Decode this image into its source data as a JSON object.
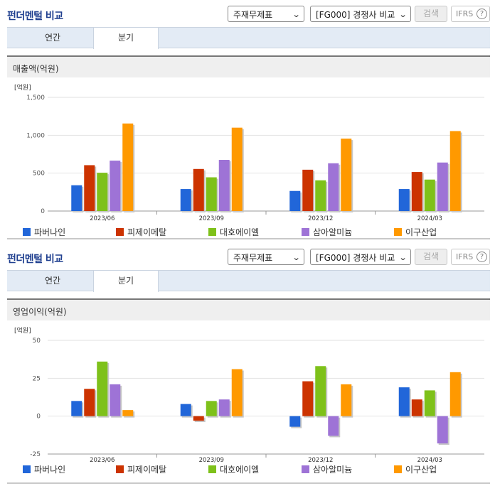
{
  "panels": [
    {
      "title": "펀더멘털 비교",
      "statement_select": "주재무제표",
      "peer_select": "[FG000] 경쟁사 비교",
      "search_label": "검색",
      "ifrs_label": "IFRS",
      "help_glyph": "?",
      "tabs": {
        "annual": "연간",
        "quarterly": "분기"
      },
      "active_tab": "분기",
      "section_title": "매출액(억원)"
    },
    {
      "title": "펀더멘털 비교",
      "statement_select": "주재무제표",
      "peer_select": "[FG000] 경쟁사 비교",
      "search_label": "검색",
      "ifrs_label": "IFRS",
      "help_glyph": "?",
      "tabs": {
        "annual": "연간",
        "quarterly": "분기"
      },
      "active_tab": "분기",
      "section_title": "영업이익(억원)"
    }
  ],
  "colors": {
    "파버나인": "#2166d9",
    "피제이메탈": "#cc3300",
    "대호에이엘": "#7ec11a",
    "삼아알미늄": "#9e73d6",
    "이구산업": "#ff9900"
  },
  "chart_data": [
    {
      "type": "bar",
      "unit": "[억원]",
      "categories": [
        "2023/06",
        "2023/09",
        "2023/12",
        "2024/03"
      ],
      "ylim": [
        0,
        1500
      ],
      "yticks": [
        0,
        500,
        1000,
        1500
      ],
      "ytick_labels": [
        "0",
        "500",
        "1,000",
        "1,500"
      ],
      "grid": true,
      "legend_position": "bottom",
      "series": [
        {
          "name": "파버나인",
          "values": [
            340,
            290,
            265,
            290
          ]
        },
        {
          "name": "피제이메탈",
          "values": [
            605,
            555,
            545,
            515
          ]
        },
        {
          "name": "대호에이엘",
          "values": [
            505,
            445,
            405,
            415
          ]
        },
        {
          "name": "삼아알미늄",
          "values": [
            665,
            675,
            630,
            640
          ]
        },
        {
          "name": "이구산업",
          "values": [
            1155,
            1100,
            955,
            1055
          ]
        }
      ]
    },
    {
      "type": "bar",
      "unit": "[억원]",
      "categories": [
        "2023/06",
        "2023/09",
        "2023/12",
        "2024/03"
      ],
      "ylim": [
        -25,
        50
      ],
      "yticks": [
        -25,
        0,
        25,
        50
      ],
      "ytick_labels": [
        "-25",
        "0",
        "25",
        "50"
      ],
      "grid": true,
      "legend_position": "bottom",
      "series": [
        {
          "name": "파버나인",
          "values": [
            10,
            8,
            -7,
            19
          ]
        },
        {
          "name": "피제이메탈",
          "values": [
            18,
            -3,
            23,
            11
          ]
        },
        {
          "name": "대호에이엘",
          "values": [
            36,
            10,
            33,
            17
          ]
        },
        {
          "name": "삼아알미늄",
          "values": [
            21,
            11,
            -13,
            -18
          ]
        },
        {
          "name": "이구산업",
          "values": [
            4,
            31,
            21,
            29
          ]
        }
      ]
    }
  ]
}
